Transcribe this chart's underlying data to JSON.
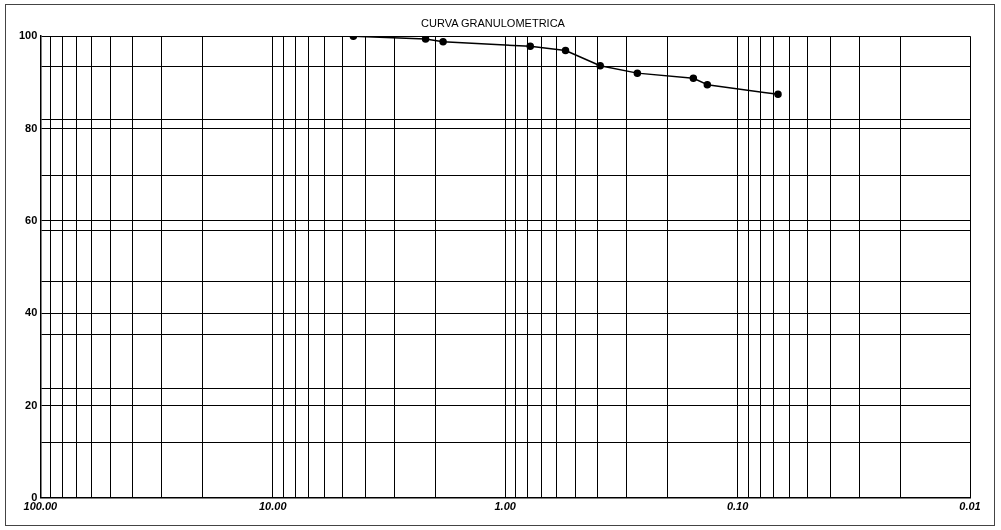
{
  "chart_data": {
    "type": "line",
    "title": "CURVA GRANULOMETRICA",
    "series": [
      {
        "color": "#000000",
        "x": [
          4.5,
          2.2,
          1.85,
          0.78,
          0.55,
          0.39,
          0.27,
          0.155,
          0.135,
          0.067
        ],
        "values": [
          100,
          99.4,
          98.8,
          97.8,
          96.9,
          93.6,
          92.0,
          90.9,
          89.5,
          87.4
        ]
      }
    ],
    "log": "x",
    "xlim": [
      100,
      0.01
    ],
    "xticks": [
      {
        "value": 100,
        "label": "100.00"
      },
      {
        "value": 90,
        "label": null
      },
      {
        "value": 80,
        "label": null
      },
      {
        "value": 70,
        "label": null
      },
      {
        "value": 60,
        "label": null
      },
      {
        "value": 50,
        "label": null
      },
      {
        "value": 40,
        "label": null
      },
      {
        "value": 30,
        "label": null
      },
      {
        "value": 20,
        "label": null
      },
      {
        "value": 10,
        "label": "10.00"
      },
      {
        "value": 9,
        "label": null
      },
      {
        "value": 8,
        "label": null
      },
      {
        "value": 7,
        "label": null
      },
      {
        "value": 6,
        "label": null
      },
      {
        "value": 5,
        "label": null
      },
      {
        "value": 4,
        "label": null
      },
      {
        "value": 3,
        "label": null
      },
      {
        "value": 2,
        "label": null
      },
      {
        "value": 1,
        "label": "1.00"
      },
      {
        "value": 0.9,
        "label": null
      },
      {
        "value": 0.8,
        "label": null
      },
      {
        "value": 0.7,
        "label": null
      },
      {
        "value": 0.6,
        "label": null
      },
      {
        "value": 0.5,
        "label": null
      },
      {
        "value": 0.4,
        "label": null
      },
      {
        "value": 0.3,
        "label": null
      },
      {
        "value": 0.2,
        "label": null
      },
      {
        "value": 0.1,
        "label": "0.10"
      },
      {
        "value": 0.09,
        "label": null
      },
      {
        "value": 0.08,
        "label": null
      },
      {
        "value": 0.07,
        "label": null
      },
      {
        "value": 0.06,
        "label": null
      },
      {
        "value": 0.05,
        "label": null
      },
      {
        "value": 0.04,
        "label": null
      },
      {
        "value": 0.03,
        "label": null
      },
      {
        "value": 0.02,
        "label": null
      },
      {
        "value": 0.01,
        "label": "0.01"
      }
    ],
    "ylim": [
      0,
      100
    ],
    "yticks": [
      0,
      {
        "value": 11.9,
        "label": null
      },
      20,
      {
        "value": 23.7,
        "label": null
      },
      {
        "value": 35.4,
        "label": null
      },
      40,
      {
        "value": 46.8,
        "label": null
      },
      {
        "value": 58,
        "label": null
      },
      60,
      {
        "value": 69.8,
        "label": null
      },
      80,
      {
        "value": 81.9,
        "label": null
      },
      {
        "value": 93.5,
        "label": null
      },
      100
    ],
    "grid": true,
    "legend": false,
    "marker": "circle",
    "line_style": "solid"
  }
}
